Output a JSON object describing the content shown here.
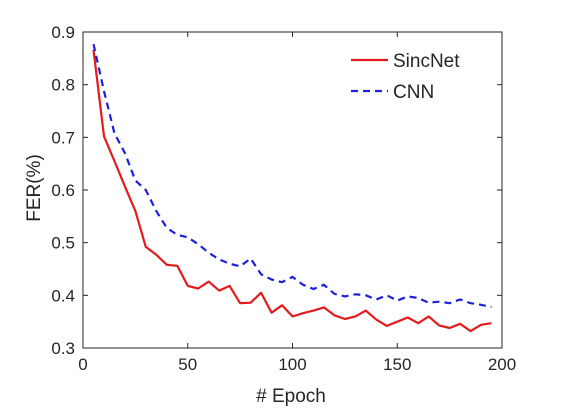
{
  "chart_data": {
    "type": "line",
    "xlabel": "# Epoch",
    "ylabel": "FER(%)",
    "xlim": [
      0,
      200
    ],
    "ylim": [
      0.3,
      0.9
    ],
    "xticks": [
      "0",
      "50",
      "100",
      "150",
      "200"
    ],
    "yticks": [
      "0.3",
      "0.4",
      "0.5",
      "0.6",
      "0.7",
      "0.8",
      "0.9"
    ],
    "grid": false,
    "legend_position": "top-right",
    "series": [
      {
        "name": "SincNet",
        "color": "#e41a1c",
        "line_style": "solid",
        "x": [
          5,
          10,
          15,
          20,
          25,
          30,
          35,
          40,
          45,
          50,
          55,
          60,
          65,
          70,
          75,
          80,
          85,
          90,
          95,
          100,
          105,
          110,
          115,
          120,
          125,
          130,
          135,
          140,
          145,
          150,
          155,
          160,
          165,
          170,
          175,
          180,
          185,
          190,
          195
        ],
        "y": [
          0.866,
          0.702,
          0.655,
          0.607,
          0.56,
          0.492,
          0.477,
          0.458,
          0.456,
          0.418,
          0.413,
          0.426,
          0.409,
          0.418,
          0.385,
          0.386,
          0.405,
          0.367,
          0.381,
          0.36,
          0.366,
          0.371,
          0.377,
          0.362,
          0.355,
          0.36,
          0.371,
          0.354,
          0.342,
          0.35,
          0.358,
          0.347,
          0.36,
          0.343,
          0.338,
          0.346,
          0.332,
          0.344,
          0.347
        ]
      },
      {
        "name": "CNN",
        "color": "#1f1fe0",
        "line_style": "dashed",
        "x": [
          5,
          10,
          15,
          20,
          25,
          30,
          35,
          40,
          45,
          50,
          55,
          60,
          65,
          70,
          75,
          80,
          85,
          90,
          95,
          100,
          105,
          110,
          115,
          120,
          125,
          130,
          135,
          140,
          145,
          150,
          155,
          160,
          165,
          170,
          175,
          180,
          185,
          190,
          195
        ],
        "y": [
          0.877,
          0.788,
          0.708,
          0.67,
          0.618,
          0.6,
          0.56,
          0.528,
          0.515,
          0.51,
          0.497,
          0.481,
          0.468,
          0.46,
          0.455,
          0.47,
          0.44,
          0.43,
          0.425,
          0.435,
          0.42,
          0.412,
          0.42,
          0.403,
          0.398,
          0.402,
          0.4,
          0.392,
          0.4,
          0.39,
          0.398,
          0.395,
          0.386,
          0.388,
          0.385,
          0.392,
          0.385,
          0.382,
          0.378
        ]
      }
    ]
  }
}
